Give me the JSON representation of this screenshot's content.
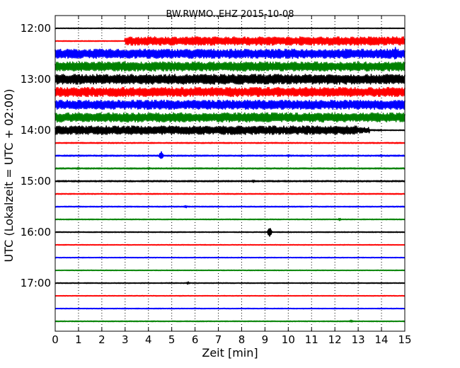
{
  "chart_data": {
    "type": "line",
    "title": "BW.RWMO..EHZ 2015-10-08",
    "xlabel": "Zeit  [min]",
    "ylabel": "UTC (Lokalzeit = UTC + 02:00)",
    "xlim": [
      0,
      15
    ],
    "x_ticks": [
      "0",
      "1",
      "2",
      "3",
      "4",
      "5",
      "6",
      "7",
      "8",
      "9",
      "10",
      "11",
      "12",
      "13",
      "14",
      "15"
    ],
    "y_ticks": [
      "12:00",
      "13:00",
      "14:00",
      "15:00",
      "16:00",
      "17:00"
    ],
    "grid": "vertical dotted",
    "trace_interval_min": 15,
    "start_time": "12:00",
    "colors": [
      "#000000",
      "#ff0000",
      "#0000ff",
      "#008000"
    ],
    "traces": [
      {
        "time": "12:00",
        "amplitude": [
          0.5
        ]
      },
      {
        "time": "12:15",
        "amplitude": [
          0.6,
          0.6,
          0.6,
          0.6,
          0.6,
          0.6,
          6,
          6,
          6,
          6,
          6,
          6,
          6,
          6,
          6,
          6,
          6,
          6,
          6,
          6,
          6,
          6,
          6,
          6,
          6,
          6,
          6,
          6,
          6,
          6
        ]
      },
      {
        "time": "12:30",
        "amplitude": [
          6.5
        ],
        "events": [
          {
            "t": 14.6,
            "amp": 10
          }
        ]
      },
      {
        "time": "12:45",
        "amplitude": [
          6.5
        ]
      },
      {
        "time": "13:00",
        "amplitude": [
          7
        ]
      },
      {
        "time": "13:15",
        "amplitude": [
          6.5
        ]
      },
      {
        "time": "13:30",
        "amplitude": [
          6.5
        ]
      },
      {
        "time": "13:45",
        "amplitude": [
          6.5
        ]
      },
      {
        "time": "14:00",
        "amplitude": [
          6,
          6,
          6,
          6,
          6,
          6,
          6,
          6,
          6,
          6,
          6,
          6,
          6,
          6,
          6,
          6,
          6,
          6,
          6,
          6,
          6,
          6,
          6,
          6,
          6,
          6,
          4,
          1,
          0.6,
          0.6
        ]
      },
      {
        "time": "14:15",
        "amplitude": [
          0.8
        ]
      },
      {
        "time": "14:30",
        "amplitude": [
          0.9
        ],
        "events": [
          {
            "t": 4.55,
            "amp": 6
          },
          {
            "t": 10.0,
            "amp": 2
          },
          {
            "t": 14.0,
            "amp": 2
          }
        ]
      },
      {
        "time": "14:45",
        "amplitude": [
          0.9
        ],
        "events": [
          {
            "t": 1.0,
            "amp": 2
          },
          {
            "t": 4.0,
            "amp": 2
          }
        ]
      },
      {
        "time": "15:00",
        "amplitude": [
          1.0
        ],
        "events": [
          {
            "t": 8.5,
            "amp": 2
          }
        ]
      },
      {
        "time": "15:15",
        "amplitude": [
          0.7
        ]
      },
      {
        "time": "15:30",
        "amplitude": [
          0.7
        ],
        "events": [
          {
            "t": 5.6,
            "amp": 2
          }
        ]
      },
      {
        "time": "15:45",
        "amplitude": [
          0.6
        ],
        "events": [
          {
            "t": 12.2,
            "amp": 2
          }
        ]
      },
      {
        "time": "16:00",
        "amplitude": [
          0.6
        ],
        "events": [
          {
            "t": 9.2,
            "amp": 7
          }
        ]
      },
      {
        "time": "16:15",
        "amplitude": [
          0.5
        ]
      },
      {
        "time": "16:30",
        "amplitude": [
          0.5
        ]
      },
      {
        "time": "16:45",
        "amplitude": [
          0.5
        ]
      },
      {
        "time": "17:00",
        "amplitude": [
          0.6
        ],
        "events": [
          {
            "t": 5.7,
            "amp": 2
          }
        ]
      },
      {
        "time": "17:15",
        "amplitude": [
          0.5
        ]
      },
      {
        "time": "17:30",
        "amplitude": [
          0.5
        ]
      },
      {
        "time": "17:45",
        "amplitude": [
          0.6
        ],
        "events": [
          {
            "t": 12.7,
            "amp": 2
          }
        ]
      }
    ]
  }
}
